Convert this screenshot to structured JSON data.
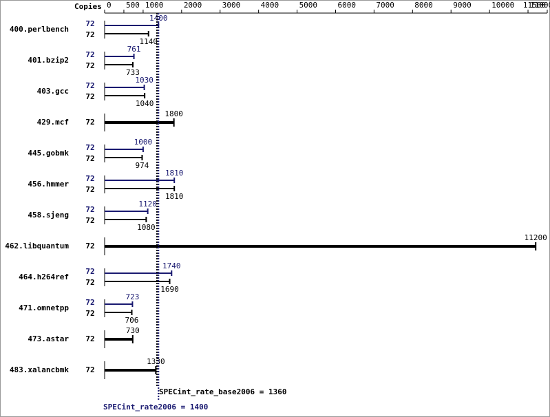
{
  "chart_data": {
    "type": "bar",
    "orientation": "horizontal",
    "copies_label": "Copies",
    "categories": [
      "400.perlbench",
      "401.bzip2",
      "403.gcc",
      "429.mcf",
      "445.gobmk",
      "456.hmmer",
      "458.sjeng",
      "462.libquantum",
      "464.h264ref",
      "471.omnetpp",
      "473.astar",
      "483.xalancbmk"
    ],
    "series": [
      {
        "color": "#191970",
        "values": [
          1400,
          761,
          1030,
          null,
          1000,
          1810,
          1120,
          null,
          1740,
          723,
          null,
          null
        ],
        "copies": [
          72,
          72,
          72,
          null,
          72,
          72,
          72,
          null,
          72,
          72,
          null,
          null
        ]
      },
      {
        "color": "#000000",
        "values": [
          1140,
          733,
          1040,
          1800,
          974,
          1810,
          1080,
          11200,
          1690,
          706,
          730,
          1330
        ],
        "copies": [
          72,
          72,
          72,
          72,
          72,
          72,
          72,
          72,
          72,
          72,
          72,
          72
        ]
      }
    ],
    "reference_lines": [
      {
        "label": "SPECint_rate_base2006 = 1360",
        "value": 1360,
        "color": "#000000"
      },
      {
        "label": "SPECint_rate2006 = 1400",
        "value": 1400,
        "color": "#191970"
      }
    ],
    "xlim": [
      0,
      11500
    ],
    "xticks": [
      0,
      500,
      1000,
      2000,
      3000,
      4000,
      5000,
      6000,
      7000,
      8000,
      9000,
      10000,
      11000,
      11500
    ]
  }
}
